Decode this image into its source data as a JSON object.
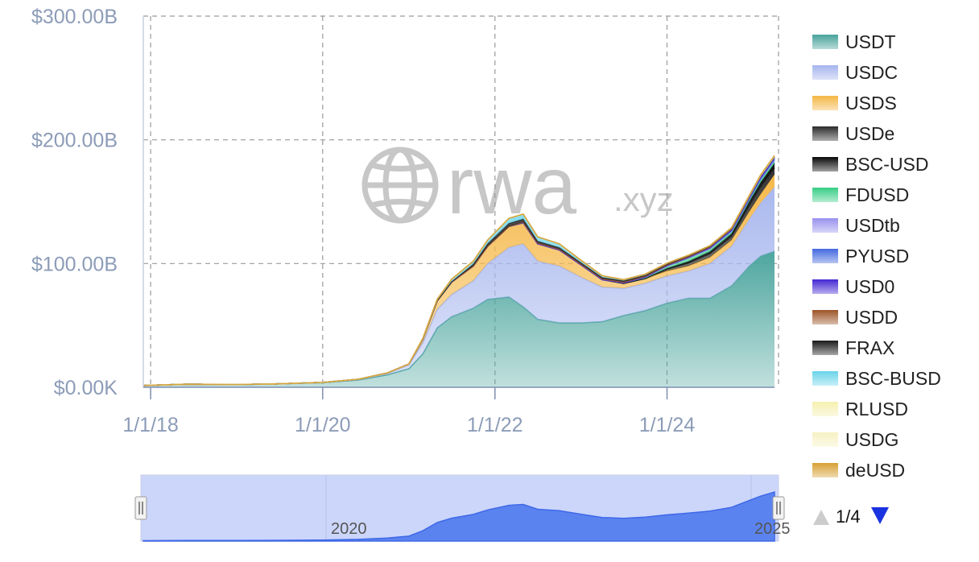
{
  "watermark": {
    "brand": "rwa",
    "suffix": ".xyz",
    "icon": "globe-icon"
  },
  "pager": {
    "label": "1/4",
    "prev_icon": "triangle-up-icon",
    "next_icon": "triangle-down-icon"
  },
  "navigator": {
    "tick_labels": [
      "2020",
      "2025"
    ]
  },
  "chart_data": {
    "type": "area",
    "stacked": true,
    "title": "",
    "xlabel": "",
    "ylabel": "",
    "x": [
      "2017-12-01",
      "2018-06-01",
      "2019-01-01",
      "2019-06-01",
      "2020-01-01",
      "2020-06-01",
      "2020-10-01",
      "2021-01-01",
      "2021-03-01",
      "2021-05-01",
      "2021-07-01",
      "2021-10-01",
      "2021-12-01",
      "2022-03-01",
      "2022-05-01",
      "2022-07-01",
      "2022-10-01",
      "2023-01-01",
      "2023-04-01",
      "2023-07-01",
      "2023-10-01",
      "2024-01-01",
      "2024-04-01",
      "2024-07-01",
      "2024-10-01",
      "2024-12-15",
      "2025-02-01",
      "2025-04-01"
    ],
    "series": [
      {
        "name": "USDT",
        "color": "#4ea69f",
        "values": [
          1.4,
          2.5,
          2.2,
          2.6,
          3.7,
          5.9,
          10,
          15,
          27,
          48,
          57,
          64,
          71,
          73,
          65,
          55,
          52,
          52,
          53,
          58,
          62,
          68,
          72,
          72,
          82,
          98,
          106,
          110
        ]
      },
      {
        "name": "USDC",
        "color": "#a9b8ee",
        "values": [
          0,
          0,
          0.1,
          0.1,
          0.2,
          0.5,
          1.2,
          3,
          9,
          15,
          18,
          22,
          29,
          40,
          51,
          47,
          46,
          37,
          28,
          22,
          22,
          22,
          22,
          28,
          32,
          38,
          43,
          52
        ]
      },
      {
        "name": "USDS",
        "color": "#f5b94a",
        "values": [
          0,
          0,
          0,
          0,
          0.1,
          0.1,
          0.4,
          0.9,
          3,
          7,
          10,
          12,
          14,
          17,
          17,
          14,
          13,
          10,
          6,
          4,
          4,
          4,
          4,
          5,
          5,
          6,
          7,
          10
        ]
      },
      {
        "name": "USDe",
        "color": "#333333",
        "values": [
          0,
          0,
          0,
          0,
          0,
          0,
          0,
          0,
          0,
          0,
          0,
          0,
          0,
          0,
          0,
          0,
          0,
          0,
          0,
          0,
          0,
          1.5,
          2.5,
          3,
          3,
          5,
          6,
          5
        ]
      },
      {
        "name": "BSC-USD",
        "color": "#111111",
        "values": [
          0,
          0,
          0,
          0,
          0,
          0,
          0,
          0,
          0,
          0,
          0,
          0,
          0,
          0,
          0,
          0,
          0,
          0,
          0,
          0,
          0,
          0.5,
          1,
          1.5,
          2,
          3,
          3.5,
          4
        ]
      },
      {
        "name": "FDUSD",
        "color": "#3fcf8a",
        "values": [
          0,
          0,
          0,
          0,
          0,
          0,
          0,
          0,
          0,
          0,
          0,
          0,
          0,
          0,
          0,
          0,
          0,
          0,
          0,
          0.5,
          1,
          2,
          3,
          2.5,
          2,
          2,
          1.5,
          1.5
        ]
      },
      {
        "name": "USDtb",
        "color": "#9c96ee",
        "values": [
          0,
          0,
          0,
          0,
          0,
          0,
          0,
          0,
          0,
          0,
          0,
          0,
          0,
          0,
          0,
          0,
          0,
          0,
          0,
          0,
          0,
          0,
          0,
          0,
          0,
          0,
          1,
          1.3
        ]
      },
      {
        "name": "PYUSD",
        "color": "#4a6ee0",
        "values": [
          0,
          0,
          0,
          0,
          0,
          0,
          0,
          0,
          0,
          0,
          0,
          0,
          0,
          0,
          0,
          0,
          0,
          0,
          0,
          0,
          0.2,
          0.3,
          0.4,
          0.5,
          0.6,
          0.5,
          0.5,
          0.7
        ]
      },
      {
        "name": "USD0",
        "color": "#4b2fd4",
        "values": [
          0,
          0,
          0,
          0,
          0,
          0,
          0,
          0,
          0,
          0,
          0,
          0,
          0,
          0,
          0,
          0,
          0,
          0,
          0,
          0,
          0,
          0,
          0,
          0.3,
          0.8,
          1,
          1.5,
          1
        ]
      },
      {
        "name": "USDD",
        "color": "#a05a2e",
        "values": [
          0,
          0,
          0,
          0,
          0,
          0,
          0,
          0,
          0,
          0,
          0,
          0,
          0,
          0,
          0.5,
          0.7,
          0.7,
          0.7,
          0.7,
          0.7,
          0.7,
          0.7,
          0.7,
          0.7,
          0.7,
          0.7,
          0.7,
          0.7
        ]
      },
      {
        "name": "FRAX",
        "color": "#222222",
        "values": [
          0,
          0,
          0,
          0,
          0,
          0,
          0,
          0,
          0.2,
          0.2,
          0.3,
          1.5,
          2,
          2.5,
          2.5,
          1.4,
          1.2,
          1,
          1,
          0.8,
          0.7,
          0.7,
          0.6,
          0.6,
          0.5,
          0.4,
          0.3,
          0.3
        ]
      },
      {
        "name": "BSC-BUSD",
        "color": "#6fd6ea",
        "values": [
          0,
          0,
          0,
          0,
          0,
          0,
          0,
          0,
          0.3,
          1,
          2,
          2.5,
          3,
          4,
          4,
          3.5,
          3,
          2,
          1.5,
          1,
          0.8,
          0.6,
          0.5,
          0.4,
          0.3,
          0.3,
          0.2,
          0.2
        ]
      },
      {
        "name": "RLUSD",
        "color": "#f5f0b3",
        "values": [
          0,
          0,
          0,
          0,
          0,
          0,
          0,
          0,
          0,
          0,
          0,
          0,
          0,
          0,
          0,
          0,
          0,
          0,
          0,
          0,
          0,
          0,
          0,
          0,
          0,
          0,
          0.1,
          0.2
        ]
      },
      {
        "name": "USDG",
        "color": "#f7f1c6",
        "values": [
          0,
          0,
          0,
          0,
          0,
          0,
          0,
          0,
          0,
          0,
          0,
          0,
          0,
          0,
          0,
          0,
          0,
          0,
          0,
          0,
          0,
          0,
          0,
          0,
          0,
          0,
          0.1,
          0.2
        ]
      },
      {
        "name": "deUSD",
        "color": "#d8a33a",
        "values": [
          0,
          0,
          0,
          0,
          0,
          0,
          0,
          0,
          0,
          0,
          0,
          0,
          0,
          0,
          0,
          0,
          0,
          0,
          0,
          0,
          0,
          0,
          0,
          0,
          0.1,
          0.2,
          0.2,
          0.2
        ]
      }
    ],
    "y_ticks": [
      {
        "value": 0,
        "label": "$0.00K"
      },
      {
        "value": 100,
        "label": "$100.00B"
      },
      {
        "value": 200,
        "label": "$200.00B"
      },
      {
        "value": 300,
        "label": "$300.00B"
      }
    ],
    "x_ticks": [
      {
        "date": "2018-01-01",
        "label": "1/1/18"
      },
      {
        "date": "2020-01-01",
        "label": "1/1/20"
      },
      {
        "date": "2022-01-01",
        "label": "1/1/22"
      },
      {
        "date": "2024-01-01",
        "label": "1/1/24"
      }
    ],
    "ylim": [
      0,
      300
    ],
    "xlim": [
      "2017-12-01",
      "2025-04-01"
    ],
    "grid": true,
    "legend_position": "right"
  }
}
